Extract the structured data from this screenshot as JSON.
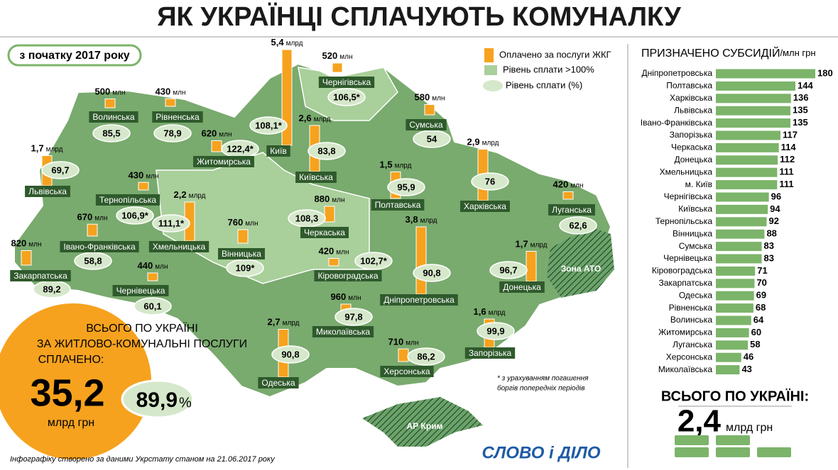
{
  "header": {
    "title": "ЯК УКРАЇНЦІ СПЛАЧУЮТЬ КОМУНАЛКУ",
    "period": "з початку 2017 року"
  },
  "legend": {
    "paid": "Оплачено за послуги ЖКГ",
    "over100": "Рівень сплати >100%",
    "level": "Рівень сплати (%)"
  },
  "map": {
    "regions": [
      {
        "name": "Волинська",
        "paid": {
          "value": 500,
          "label": "500",
          "unit": "млн"
        },
        "level": "85,5"
      },
      {
        "name": "Рівненська",
        "paid": {
          "value": 430,
          "label": "430",
          "unit": "млн"
        },
        "level": "78,9"
      },
      {
        "name": "Житомирська",
        "paid": {
          "value": 620,
          "label": "620",
          "unit": "млн"
        },
        "level": "122,4*"
      },
      {
        "name": "Київ",
        "paid": {
          "value": 5400,
          "label": "5,4",
          "unit": "млрд"
        },
        "level": "108,1*"
      },
      {
        "name": "Чернігівська",
        "paid": {
          "value": 520,
          "label": "520",
          "unit": "млн"
        },
        "level": "106,5*"
      },
      {
        "name": "Сумська",
        "paid": {
          "value": 580,
          "label": "580",
          "unit": "млн"
        },
        "level": "54"
      },
      {
        "name": "Київська",
        "paid": {
          "value": 2600,
          "label": "2,6",
          "unit": "млрд"
        },
        "level": "83,8"
      },
      {
        "name": "Львівська",
        "paid": {
          "value": 1700,
          "label": "1,7",
          "unit": "млрд"
        },
        "level": "69,7"
      },
      {
        "name": "Тернопільська",
        "paid": {
          "value": 430,
          "label": "430",
          "unit": "млн"
        },
        "level": "106,9*"
      },
      {
        "name": "Хмельницька",
        "paid": {
          "value": 2200,
          "label": "2,2",
          "unit": "млрд"
        },
        "level": "111,1*"
      },
      {
        "name": "Вінницька",
        "paid": {
          "value": 760,
          "label": "760",
          "unit": "млн"
        },
        "level": "109*"
      },
      {
        "name": "Черкаська",
        "paid": {
          "value": 880,
          "label": "880",
          "unit": "млн"
        },
        "level": "108,3"
      },
      {
        "name": "Полтавська",
        "paid": {
          "value": 1500,
          "label": "1,5",
          "unit": "млрд"
        },
        "level": "95,9"
      },
      {
        "name": "Харківська",
        "paid": {
          "value": 2900,
          "label": "2,9",
          "unit": "млрд"
        },
        "level": "76"
      },
      {
        "name": "Луганська",
        "paid": {
          "value": 420,
          "label": "420",
          "unit": "млн"
        },
        "level": "62,6"
      },
      {
        "name": "Донецька",
        "paid": {
          "value": 1700,
          "label": "1,7",
          "unit": "млрд"
        },
        "level": "96,7"
      },
      {
        "name": "Дніпропетровська",
        "paid": {
          "value": 3800,
          "label": "3,8",
          "unit": "млрд"
        },
        "level": "90,8"
      },
      {
        "name": "Кіровоградська",
        "paid": {
          "value": 420,
          "label": "420",
          "unit": "млн"
        },
        "level": "102,7*"
      },
      {
        "name": "Івано-Франківська",
        "paid": {
          "value": 670,
          "label": "670",
          "unit": "млн"
        },
        "level": "58,8"
      },
      {
        "name": "Закарпатська",
        "paid": {
          "value": 820,
          "label": "820",
          "unit": "млн"
        },
        "level": "89,2"
      },
      {
        "name": "Чернівецька",
        "paid": {
          "value": 440,
          "label": "440",
          "unit": "млн"
        },
        "level": "60,1"
      },
      {
        "name": "Миколаївська",
        "paid": {
          "value": 960,
          "label": "960",
          "unit": "млн"
        },
        "level": "97,8"
      },
      {
        "name": "Одеська",
        "paid": {
          "value": 2700,
          "label": "2,7",
          "unit": "млрд"
        },
        "level": "90,8"
      },
      {
        "name": "Херсонська",
        "paid": {
          "value": 710,
          "label": "710",
          "unit": "млн"
        },
        "level": "86,2"
      },
      {
        "name": "Запорізька",
        "paid": {
          "value": 1600,
          "label": "1,6",
          "unit": "млрд"
        },
        "level": "99,9"
      }
    ],
    "zone_ato": "Зона АТО",
    "crimea": "АР Крим"
  },
  "total": {
    "line1": "ВСЬОГО ПО УКРАЇНІ",
    "line2": "ЗА ЖИТЛОВО-КОМУНАЛЬНІ ПОСЛУГИ",
    "line3": "СПЛАЧЕНО:",
    "amount": "35,2",
    "unit": "млрд грн",
    "level": "89,9",
    "level_unit": "%"
  },
  "footnote": [
    "* з урахуванням погашення",
    "боргів попередніх періодів"
  ],
  "source": "Інфографіку створено за даними Укрстату станом на 21.06.2017 року",
  "logo": "СЛОВО і ДІЛО",
  "chart_data": {
    "type": "bar",
    "title": "ПРИЗНАЧЕНО СУБСИДІЙ",
    "unit": "/млн грн",
    "color": "#7cb46a",
    "categories": [
      "Дніпропетровська",
      "Полтавська",
      "Харківська",
      "Львівська",
      "Івано-Франківська",
      "Запорізька",
      "Черкаська",
      "Донецька",
      "Хмельницька",
      "м. Київ",
      "Чернігівська",
      "Київська",
      "Тернопільська",
      "Вінницька",
      "Сумська",
      "Чернівецька",
      "Кіровоградська",
      "Закарпатська",
      "Одеська",
      "Рівненська",
      "Волинська",
      "Житомирська",
      "Луганська",
      "Херсонська",
      "Миколаївська"
    ],
    "values": [
      180,
      144,
      136,
      135,
      135,
      117,
      114,
      112,
      111,
      111,
      96,
      94,
      92,
      88,
      83,
      83,
      71,
      70,
      69,
      68,
      64,
      60,
      58,
      46,
      43
    ]
  },
  "subsidy_total": {
    "label": "ВСЬОГО ПО УКРАЇНІ:",
    "amount": "2,4",
    "unit": "млрд грн"
  }
}
